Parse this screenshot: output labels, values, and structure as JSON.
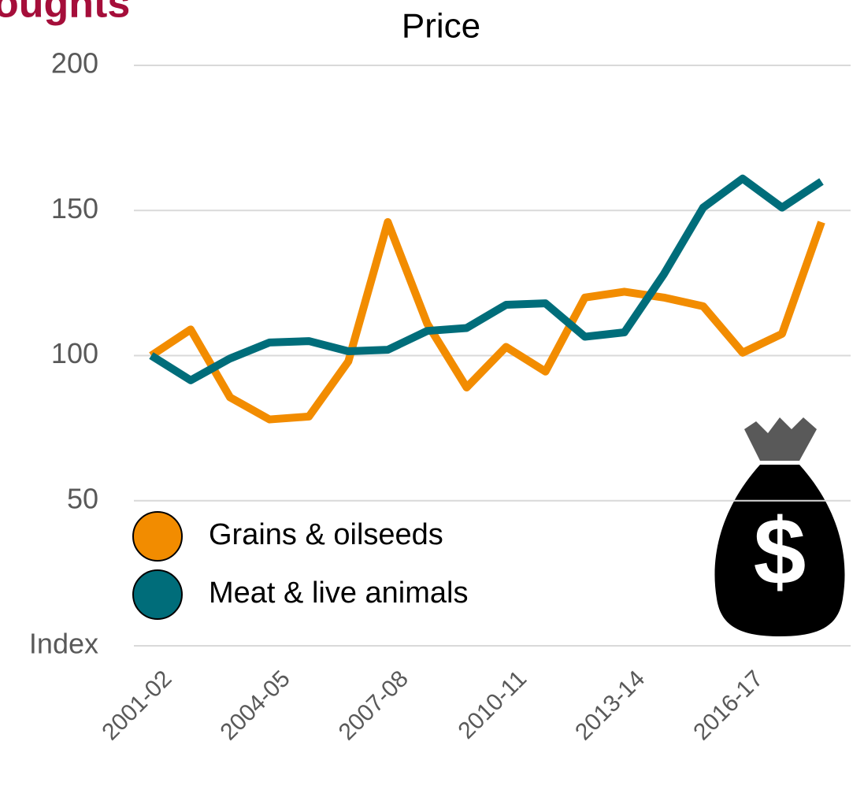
{
  "header_fragment": "oughts",
  "chart_data": {
    "type": "line",
    "title": "Price",
    "categories": [
      "2001-02",
      null,
      null,
      "2004-05",
      null,
      null,
      "2007-08",
      null,
      null,
      "2010-11",
      null,
      null,
      "2013-14",
      null,
      null,
      "2016-17",
      null,
      null
    ],
    "series": [
      {
        "name": "Grains & oilseeds",
        "color": "#f28c00",
        "values": [
          100,
          109,
          85.6,
          78,
          79,
          98,
          146,
          111,
          89,
          103,
          94.5,
          120,
          122,
          120,
          117,
          101,
          107.5,
          146
        ]
      },
      {
        "name": "Meat & live animals",
        "color": "#006d7a",
        "values": [
          100,
          91.5,
          99,
          104.5,
          105,
          101.5,
          102,
          108.5,
          109.5,
          117.5,
          118,
          106.5,
          108,
          128,
          151,
          161,
          151,
          160
        ]
      }
    ],
    "ylim": [
      0,
      200
    ],
    "yticks": [
      {
        "value": 0,
        "label": "Index"
      },
      50,
      100,
      150,
      200
    ],
    "grid": true
  }
}
